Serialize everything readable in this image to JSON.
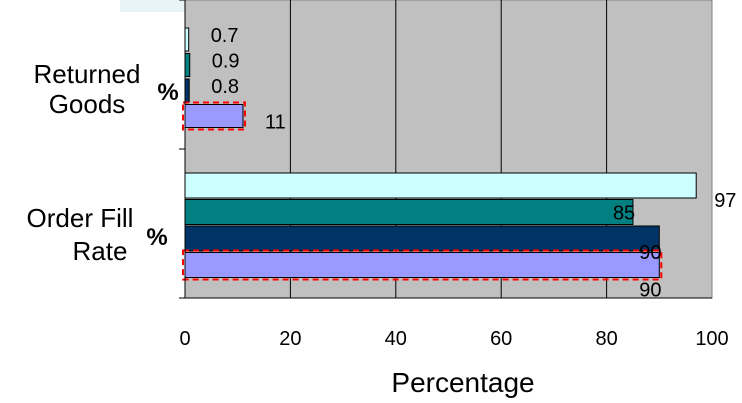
{
  "chart_data": {
    "type": "bar",
    "orientation": "horizontal",
    "xlabel": "Percentage",
    "xlim": [
      0,
      100
    ],
    "x_ticks": [
      "0",
      "20",
      "40",
      "60",
      "80",
      "100"
    ],
    "grid": "vertical",
    "plot_background": "#c0c0c0",
    "categories": [
      {
        "name": "Returned Goods",
        "lines": [
          "Returned",
          "Goods"
        ],
        "suffix": "%"
      },
      {
        "name": "Order Fill Rate",
        "lines": [
          "Order Fill",
          "Rate"
        ],
        "suffix": "%"
      }
    ],
    "series": [
      {
        "color": "#ccffff",
        "values": [
          0.7,
          97
        ],
        "labels": [
          "0.7",
          "97"
        ],
        "highlighted": false
      },
      {
        "color": "#008080",
        "values": [
          0.9,
          85
        ],
        "labels": [
          "0.9",
          "85"
        ],
        "highlighted": false
      },
      {
        "color": "#003366",
        "values": [
          0.8,
          90
        ],
        "labels": [
          "0.8",
          "90"
        ],
        "highlighted": false
      },
      {
        "color": "#9999ff",
        "values": [
          11,
          90
        ],
        "labels": [
          "11",
          "90"
        ],
        "highlighted": true
      }
    ],
    "highlight_border_color": "#ff0000"
  }
}
